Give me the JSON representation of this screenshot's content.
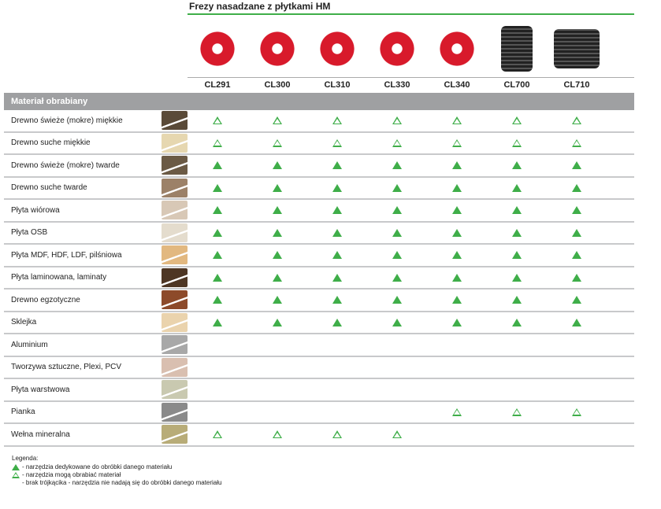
{
  "title": "Frezy nasadzane z płytkami HM",
  "tools": [
    {
      "code": "CL291",
      "image": "red-spiral-cutters"
    },
    {
      "code": "CL300",
      "image": "red-cutter-heads"
    },
    {
      "code": "CL310",
      "image": "red-cutter-head"
    },
    {
      "code": "CL330",
      "image": "red-cutter-heads"
    },
    {
      "code": "CL340",
      "image": "red-cutter-heads"
    },
    {
      "code": "CL700",
      "image": "black-spiral-cylinder"
    },
    {
      "code": "CL710",
      "image": "black-spiral-cylinder"
    }
  ],
  "header_label": "Materiał obrabiany",
  "rows": [
    {
      "label": "Drewno świeże (mokre) miękkie",
      "color": "#5a4a38",
      "marks": [
        "o",
        "o",
        "o",
        "o",
        "o",
        "o",
        "o"
      ]
    },
    {
      "label": "Drewno suche miękkie",
      "color": "#e6d7b0",
      "marks": [
        "o",
        "o",
        "o",
        "o",
        "o",
        "o",
        "o"
      ]
    },
    {
      "label": "Drewno świeże (mokre) twarde",
      "color": "#6b5a45",
      "marks": [
        "f",
        "f",
        "f",
        "f",
        "f",
        "f",
        "f"
      ]
    },
    {
      "label": "Drewno suche twarde",
      "color": "#9c8168",
      "marks": [
        "f",
        "f",
        "f",
        "f",
        "f",
        "f",
        "f"
      ]
    },
    {
      "label": "Płyta wiórowa",
      "color": "#d8c8b6",
      "marks": [
        "f",
        "f",
        "f",
        "f",
        "f",
        "f",
        "f"
      ]
    },
    {
      "label": "Płyta OSB",
      "color": "#e4dccd",
      "marks": [
        "f",
        "f",
        "f",
        "f",
        "f",
        "f",
        "f"
      ]
    },
    {
      "label": "Płyta MDF, HDF, LDF, pilśniowa",
      "color": "#e2b880",
      "marks": [
        "f",
        "f",
        "f",
        "f",
        "f",
        "f",
        "f"
      ]
    },
    {
      "label": "Płyta laminowana, laminaty",
      "color": "#4e3624",
      "marks": [
        "f",
        "f",
        "f",
        "f",
        "f",
        "f",
        "f"
      ]
    },
    {
      "label": "Drewno egzotyczne",
      "color": "#8d4a2a",
      "marks": [
        "f",
        "f",
        "f",
        "f",
        "f",
        "f",
        "f"
      ]
    },
    {
      "label": "Sklejka",
      "color": "#ead3ad",
      "marks": [
        "f",
        "f",
        "f",
        "f",
        "f",
        "f",
        "f"
      ]
    },
    {
      "label": "Aluminium",
      "color": "#a8a8a8",
      "marks": [
        "",
        "",
        "",
        "",
        "",
        "",
        ""
      ]
    },
    {
      "label": "Tworzywa sztuczne, Plexi, PCV",
      "color": "#d9bfb0",
      "marks": [
        "",
        "",
        "",
        "",
        "",
        "",
        ""
      ]
    },
    {
      "label": "Płyta warstwowa",
      "color": "#c9c9b0",
      "marks": [
        "",
        "",
        "",
        "",
        "",
        "",
        ""
      ]
    },
    {
      "label": "Pianka",
      "color": "#8a8a8a",
      "marks": [
        "",
        "",
        "",
        "",
        "o",
        "o",
        "o"
      ]
    },
    {
      "label": "Wełna mineralna",
      "color": "#b8ac78",
      "marks": [
        "o",
        "o",
        "o",
        "o",
        "",
        "",
        ""
      ]
    }
  ],
  "legend": {
    "title": "Legenda:",
    "filled": "- narzędzia dedykowane do obróbki danego materiału",
    "outline": "- narzędzia mogą obrabiać materiał",
    "none": "- brak trójkącika - narzędzia nie nadają się do obróbki danego materiału"
  },
  "colors": {
    "accent": "#3fae49",
    "header": "#9fa0a2"
  }
}
